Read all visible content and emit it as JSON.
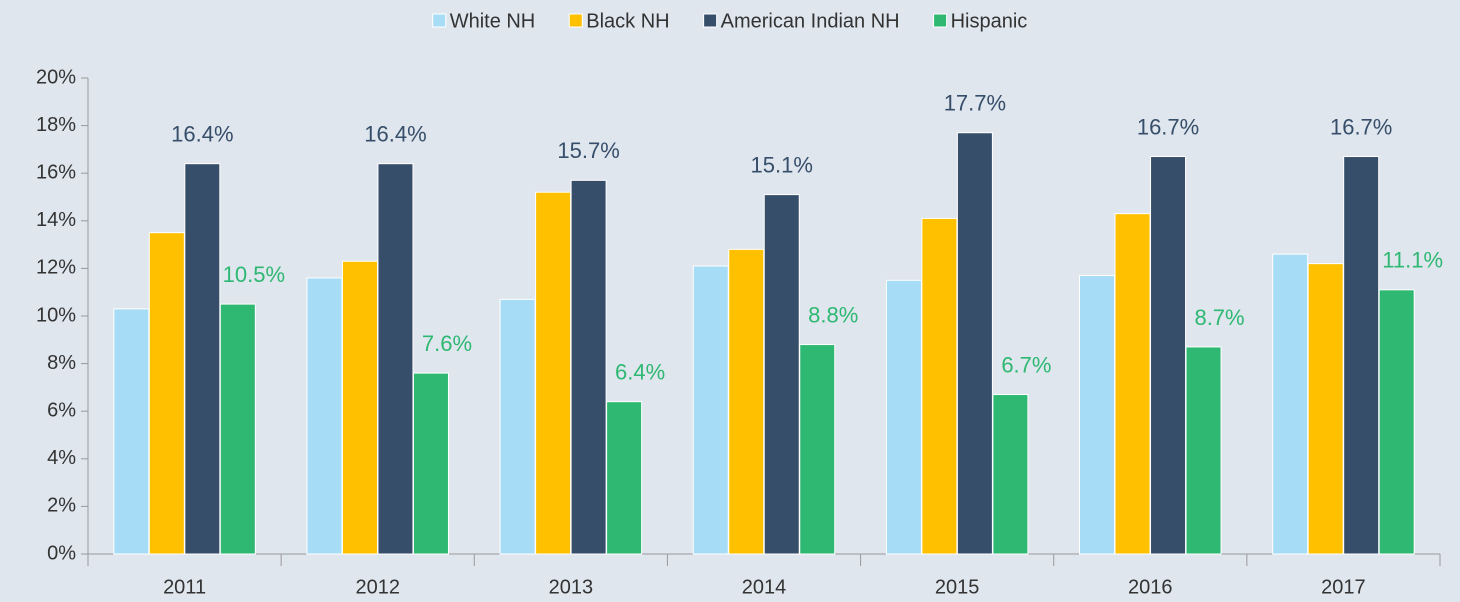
{
  "chart_data": {
    "type": "bar",
    "categories": [
      "2011",
      "2012",
      "2013",
      "2014",
      "2015",
      "2016",
      "2017"
    ],
    "series": [
      {
        "name": "White NH",
        "color": "#a6dcf5",
        "values": [
          10.3,
          11.6,
          10.7,
          12.1,
          11.5,
          11.7,
          12.6
        ]
      },
      {
        "name": "Black NH",
        "color": "#ffc000",
        "values": [
          13.5,
          12.3,
          15.2,
          12.8,
          14.1,
          14.3,
          12.2
        ]
      },
      {
        "name": "American Indian NH",
        "color": "#374e6a",
        "values": [
          16.4,
          16.4,
          15.7,
          15.1,
          17.7,
          16.7,
          16.7
        ],
        "value_labels": [
          "16.4%",
          "16.4%",
          "15.7%",
          "15.1%",
          "17.7%",
          "16.7%",
          "16.7%"
        ],
        "label_color": "#374e6a"
      },
      {
        "name": "Hispanic",
        "color": "#2eb872",
        "values": [
          10.5,
          7.6,
          6.4,
          8.8,
          6.7,
          8.7,
          11.1
        ],
        "value_labels": [
          "10.5%",
          "7.6%",
          "6.4%",
          "8.8%",
          "6.7%",
          "8.7%",
          "11.1%"
        ],
        "label_color": "#2eb872"
      }
    ],
    "ylim": [
      0,
      20
    ],
    "yticks": [
      {
        "value": 0,
        "label": "0%"
      },
      {
        "value": 2,
        "label": "2%"
      },
      {
        "value": 4,
        "label": "4%"
      },
      {
        "value": 6,
        "label": "6%"
      },
      {
        "value": 8,
        "label": "8%"
      },
      {
        "value": 10,
        "label": "10%"
      },
      {
        "value": 12,
        "label": "12%"
      },
      {
        "value": 14,
        "label": "14%"
      },
      {
        "value": 16,
        "label": "16%"
      },
      {
        "value": 18,
        "label": "18%"
      },
      {
        "value": 20,
        "label": "20%"
      }
    ],
    "legend": "top",
    "grid": false
  }
}
